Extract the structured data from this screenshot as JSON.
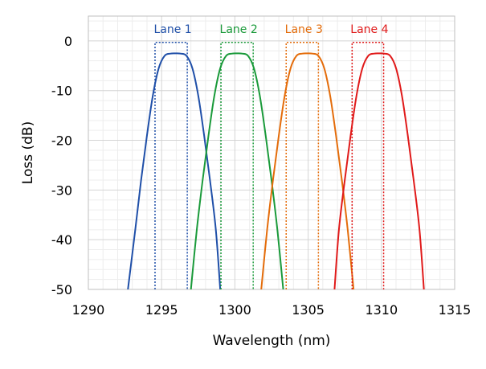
{
  "chart_data": {
    "type": "line",
    "title": "",
    "xlabel": "Wavelength (nm)",
    "ylabel": "Loss (dB)",
    "xlim": [
      1290,
      1315
    ],
    "ylim": [
      -50,
      5
    ],
    "x_ticks": [
      1290,
      1295,
      1300,
      1305,
      1310,
      1315
    ],
    "y_ticks": [
      0,
      -10,
      -20,
      -30,
      -40,
      -50
    ],
    "x_tick_labels": [
      "1290",
      "1295",
      "1300",
      "1305",
      "1310",
      "1315"
    ],
    "y_tick_labels": [
      "0",
      "-10",
      "-20",
      "-30",
      "-40",
      "-50"
    ],
    "grid": true,
    "minor_grid": true,
    "legend": "none",
    "series": [
      {
        "name": "Lane 1",
        "color": "#1f4fa8",
        "x": [
          1292.7,
          1293.2,
          1293.6,
          1294.0,
          1294.4,
          1294.8,
          1295.2,
          1295.6,
          1295.95,
          1296.3,
          1296.7,
          1297.1,
          1297.5,
          1297.9,
          1298.3,
          1298.7,
          1299.0
        ],
        "y": [
          -50,
          -38,
          -28,
          -19,
          -11,
          -5.5,
          -3.0,
          -2.55,
          -2.5,
          -2.55,
          -3.0,
          -5.5,
          -11,
          -19,
          -28,
          -38,
          -50
        ],
        "passband": [
          1294.55,
          1296.75
        ]
      },
      {
        "name": "Lane 2",
        "color": "#1a9a3a",
        "x": [
          1297.0,
          1297.4,
          1297.8,
          1298.2,
          1298.6,
          1299.0,
          1299.4,
          1299.8,
          1300.15,
          1300.5,
          1300.9,
          1301.3,
          1301.7,
          1302.1,
          1302.5,
          1302.9,
          1303.3
        ],
        "y": [
          -50,
          -38,
          -28,
          -19,
          -11,
          -5.5,
          -3.0,
          -2.55,
          -2.5,
          -2.55,
          -3.0,
          -5.5,
          -11,
          -19,
          -28,
          -38,
          -50
        ],
        "passband": [
          1299.05,
          1301.25
        ]
      },
      {
        "name": "Lane 3",
        "color": "#e46c0a",
        "x": [
          1301.8,
          1302.2,
          1302.6,
          1303.0,
          1303.4,
          1303.8,
          1304.2,
          1304.6,
          1304.95,
          1305.3,
          1305.7,
          1306.1,
          1306.5,
          1306.9,
          1307.3,
          1307.7,
          1308.1
        ],
        "y": [
          -50,
          -38,
          -28,
          -19,
          -11,
          -5.5,
          -3.0,
          -2.55,
          -2.5,
          -2.55,
          -3.0,
          -5.5,
          -11,
          -19,
          -28,
          -38,
          -50
        ],
        "passband": [
          1303.5,
          1305.7
        ]
      },
      {
        "name": "Lane 4",
        "color": "#e01a1a",
        "x": [
          1306.8,
          1307.1,
          1307.5,
          1307.9,
          1308.3,
          1308.7,
          1309.1,
          1309.5,
          1309.85,
          1310.2,
          1310.6,
          1311.0,
          1311.4,
          1311.8,
          1312.2,
          1312.6,
          1312.9
        ],
        "y": [
          -50,
          -38,
          -28,
          -19,
          -11,
          -5.5,
          -3.0,
          -2.55,
          -2.5,
          -2.55,
          -3.0,
          -5.5,
          -11,
          -19,
          -28,
          -38,
          -50
        ],
        "passband": [
          1308.0,
          1310.15
        ]
      }
    ],
    "passband_top": -0.3
  }
}
